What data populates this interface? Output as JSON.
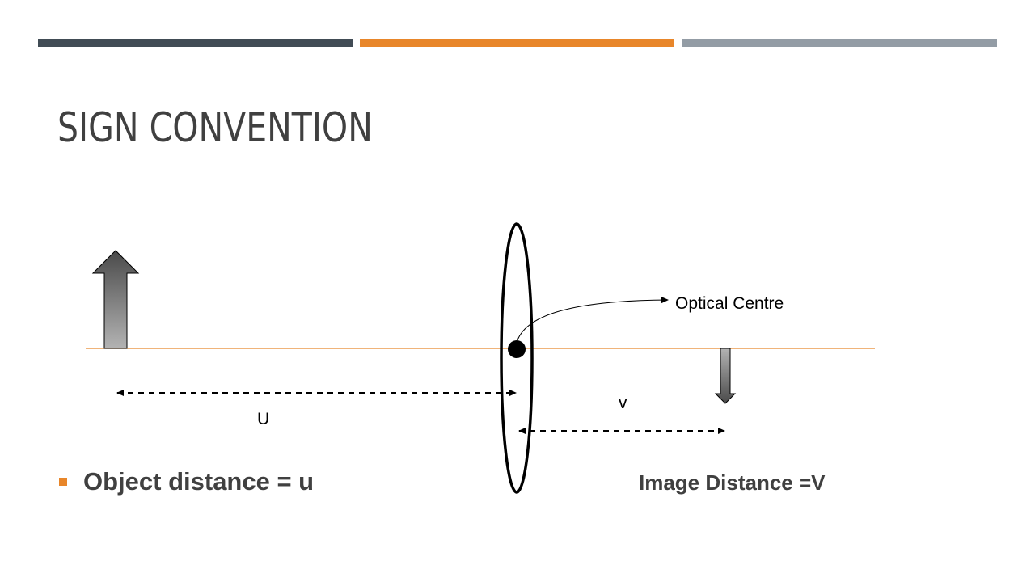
{
  "colors": {
    "bar_dark": "#414c55",
    "bar_orange": "#e8862a",
    "bar_gray": "#939ca5",
    "title_text": "#404040",
    "axis_line": "#e8862a",
    "bullet": "#e8862a",
    "body_text": "#404040",
    "ink": "#000000",
    "arrow_top": "#4a4a4a",
    "arrow_bottom": "#b3b3b3"
  },
  "slide": {
    "title": "SIGN CONVENTION"
  },
  "diagram": {
    "optical_centre_label": "Optical Centre",
    "u_label": "U",
    "v_label": "v"
  },
  "bullets": [
    {
      "text": "Object distance = u"
    }
  ],
  "image_distance_label": "Image Distance =V"
}
